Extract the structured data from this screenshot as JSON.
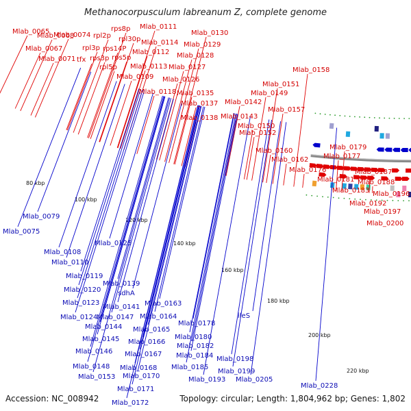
{
  "title": "Methanocorpusculum labreanum Z, complete genome",
  "footer": {
    "accession": "Accession: NC_008942",
    "topology": "Topology: circular; Length: 1,804,962 bp; Genes: 1,802"
  },
  "colors": {
    "forward": "#e00000",
    "reverse": "#0000cc",
    "backbone": "#8a8a8a",
    "tick": "#2a9a2a"
  },
  "ticks": [
    "80 kbp",
    "100 kbp",
    "120 kbp",
    "140 kbp",
    "160 kbp",
    "180 kbp",
    "200 kbp",
    "220 kbp"
  ],
  "forward_labels": [
    "Mlab_0068",
    "Mlab_0065",
    "Mlab_0074",
    "Mlab_0067",
    "Mlab_0071",
    "rpl2p",
    "rps8p",
    "rpl30p",
    "rps14P",
    "rpl3p",
    "rps3p",
    "rps5p",
    "tfx",
    "rpl5p",
    "Mlab_0111",
    "Mlab_0114",
    "Mlab_0112",
    "Mlab_0113",
    "Mlab_0109",
    "Mlab_0118",
    "Mlab_0130",
    "Mlab_0129",
    "Mlab_0128",
    "Mlab_0127",
    "Mlab_0126",
    "Mlab_0135",
    "Mlab_0137",
    "Mlab_0138",
    "Mlab_0142",
    "Mlab_0143",
    "Mlab_0149",
    "Mlab_0151",
    "Mlab_0150",
    "Mlab_0152",
    "Mlab_0158",
    "Mlab_0157",
    "Mlab_0160",
    "Mlab_0162",
    "Mlab_0176",
    "Mlab_0179",
    "Mlab_0177",
    "Mlab_0181",
    "Mlab_0183",
    "Mlab_0187",
    "Mlab_0188",
    "Mlab_0196",
    "Mlab_0192",
    "Mlab_0197",
    "Mlab_0200"
  ],
  "reverse_labels": [
    "Mlab_0079",
    "Mlab_0075",
    "Mlab_0108",
    "Mlab_0110",
    "Mlab_0125",
    "Mlab_0119",
    "Mlab_0120",
    "Mlab_0139",
    "sdhA",
    "Mlab_0123",
    "Mlab_0141",
    "Mlab_0163",
    "Mlab_0124",
    "Mlab_0147",
    "Mlab_0164",
    "Mlab_0144",
    "Mlab_0165",
    "Mlab_0178",
    "ileS",
    "Mlab_0145",
    "Mlab_0180",
    "Mlab_0166",
    "Mlab_0182",
    "Mlab_0146",
    "Mlab_0167",
    "Mlab_0184",
    "Mlab_0148",
    "Mlab_0168",
    "Mlab_0185",
    "Mlab_0198",
    "Mlab_0153",
    "Mlab_0170",
    "Mlab_0199",
    "Mlab_0193",
    "Mlab_0205",
    "Mlab_0171",
    "Mlab_0228",
    "Mlab_0172"
  ]
}
